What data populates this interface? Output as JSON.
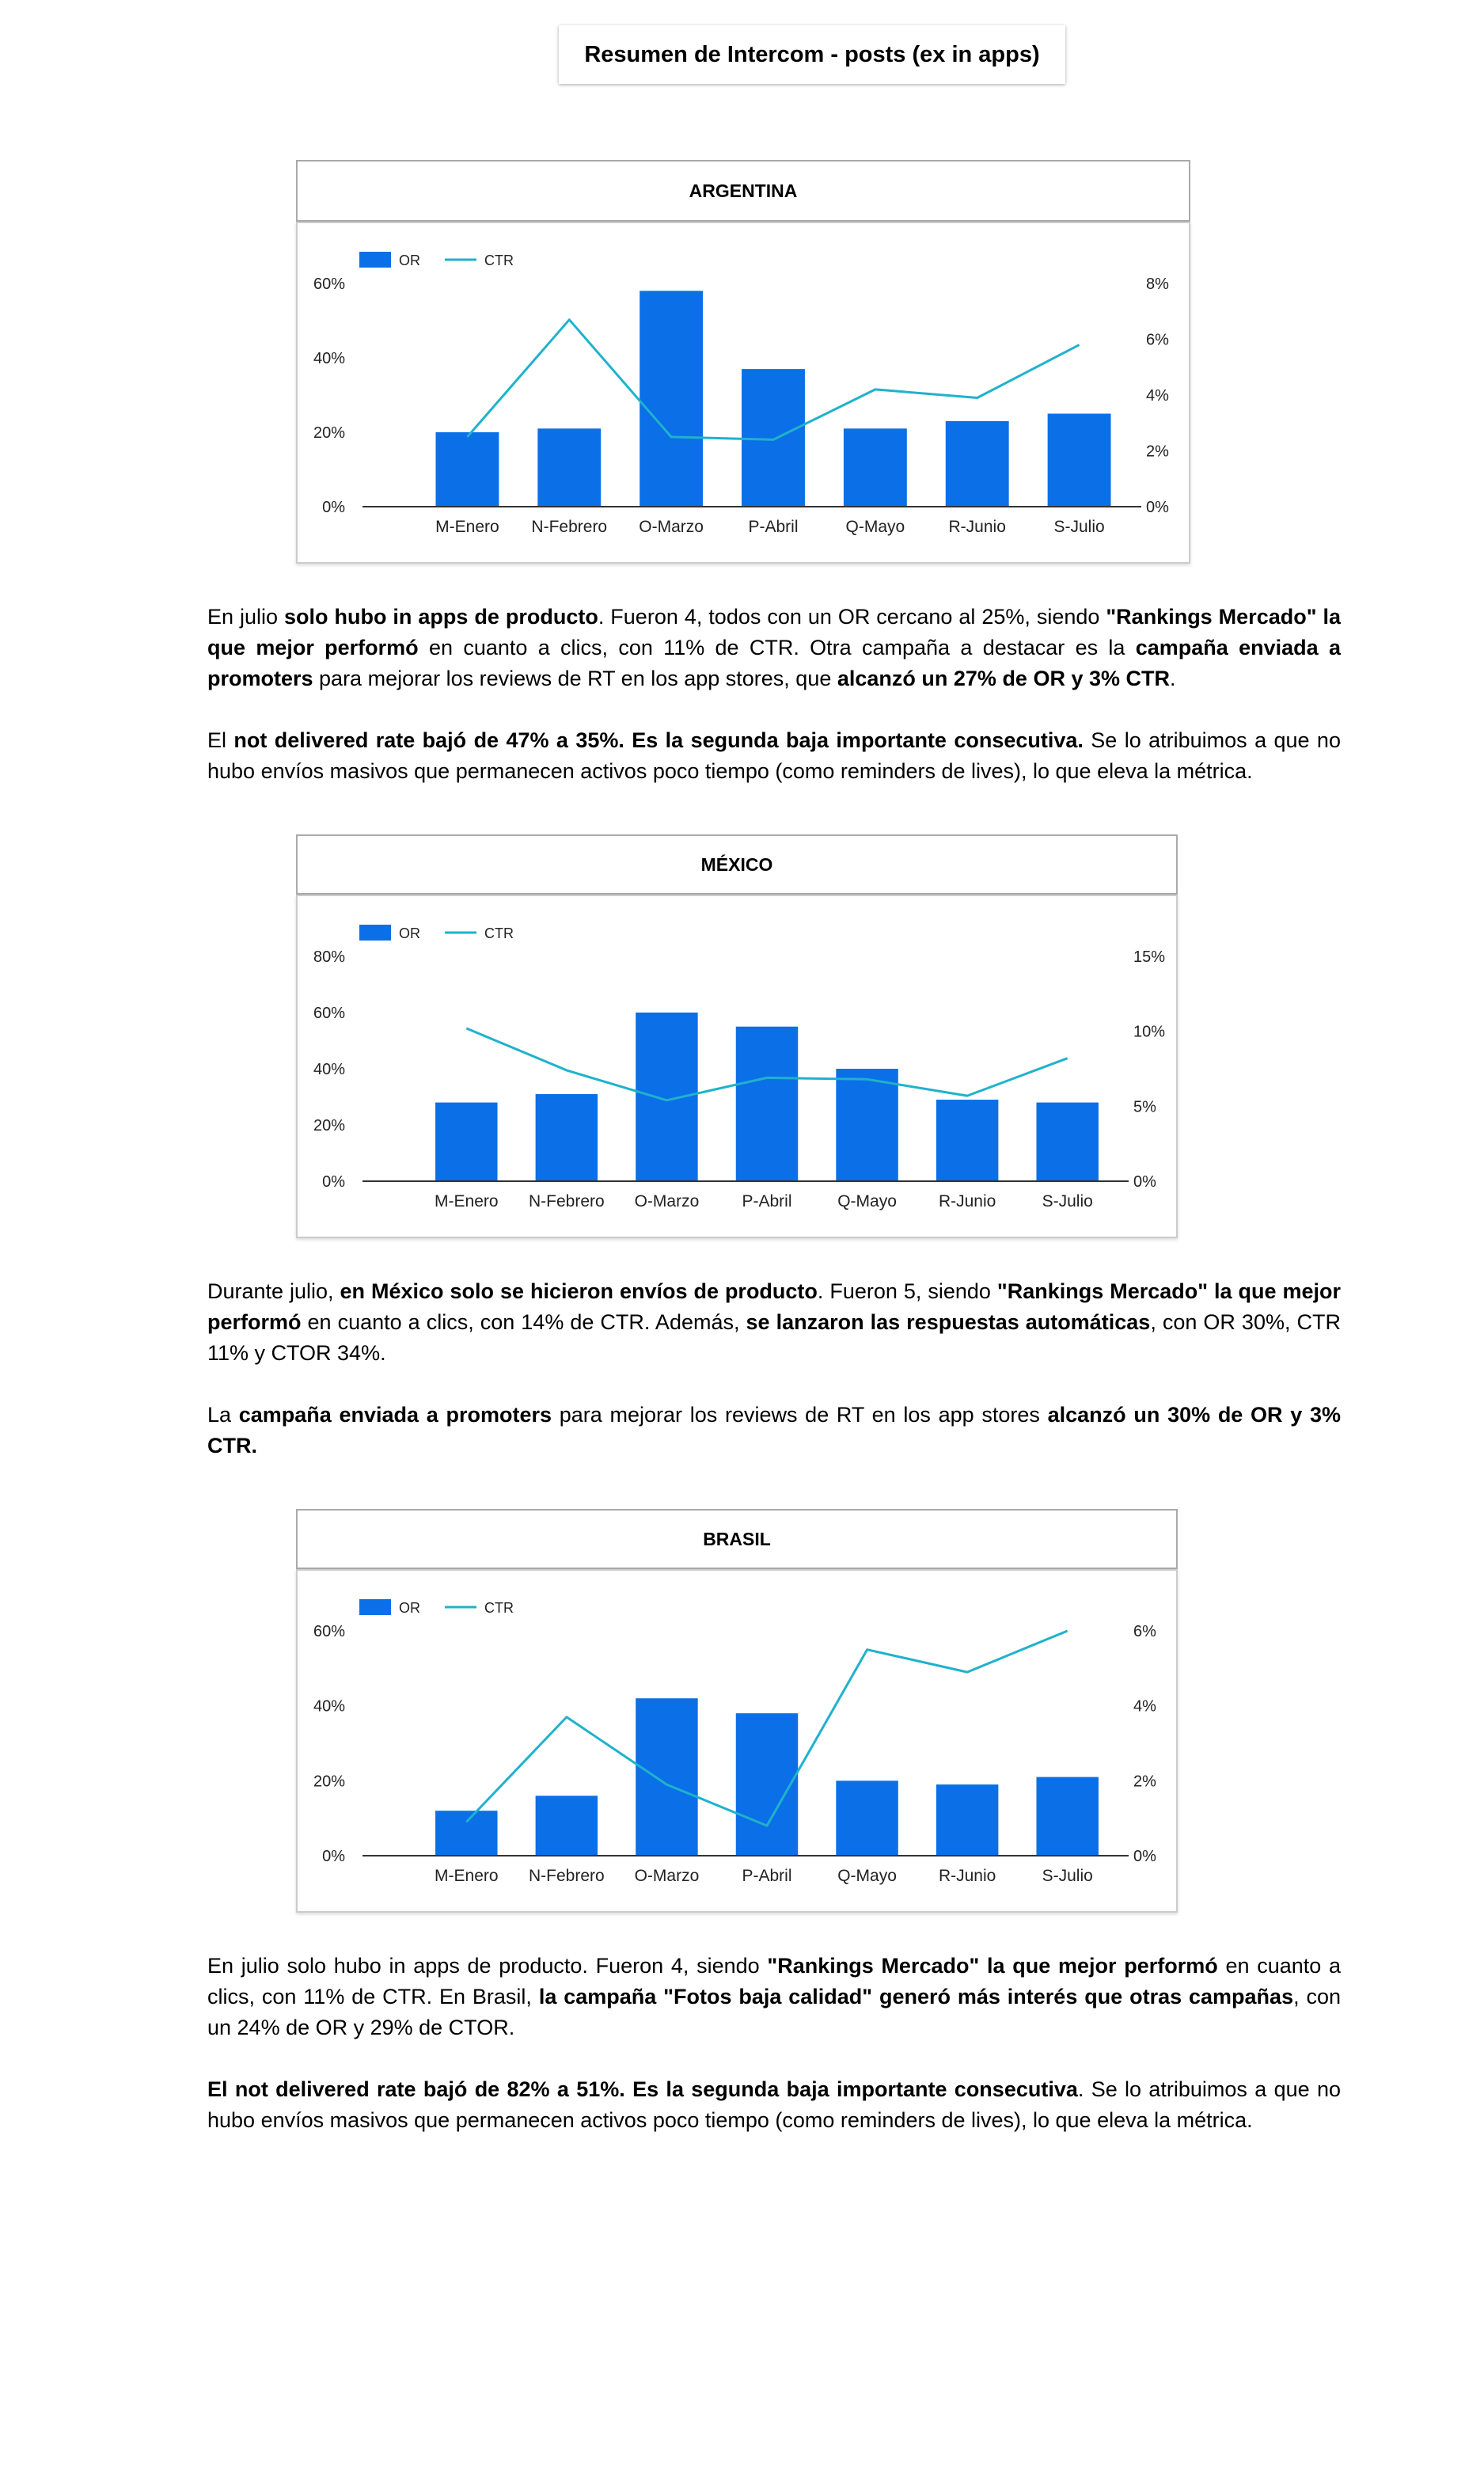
{
  "page": {
    "title": "Resumen de Intercom - posts (ex in apps)"
  },
  "legend": {
    "or": "OR",
    "ctr": "CTR"
  },
  "colors": {
    "bar": "#0b6fe8",
    "line": "#1fb2cc",
    "axis": "#333333"
  },
  "chart_data": [
    {
      "type": "bar",
      "title": "ARGENTINA",
      "categories": [
        "M-Enero",
        "N-Febrero",
        "O-Marzo",
        "P-Abril",
        "Q-Mayo",
        "R-Junio",
        "S-Julio"
      ],
      "series": [
        {
          "name": "OR",
          "type": "bar",
          "axis": "left",
          "values": [
            20,
            21,
            58,
            37,
            21,
            23,
            25
          ]
        },
        {
          "name": "CTR",
          "type": "line",
          "axis": "right",
          "values": [
            2.5,
            6.7,
            2.5,
            2.4,
            4.2,
            3.9,
            5.8
          ]
        }
      ],
      "yleft": {
        "ticks": [
          "0%",
          "20%",
          "40%",
          "60%"
        ],
        "max": 60
      },
      "yright": {
        "ticks": [
          "0%",
          "2%",
          "4%",
          "6%",
          "8%"
        ],
        "max": 8
      }
    },
    {
      "type": "bar",
      "title": "MÉXICO",
      "categories": [
        "M-Enero",
        "N-Febrero",
        "O-Marzo",
        "P-Abril",
        "Q-Mayo",
        "R-Junio",
        "S-Julio"
      ],
      "series": [
        {
          "name": "OR",
          "type": "bar",
          "axis": "left",
          "values": [
            28,
            31,
            60,
            55,
            40,
            29,
            28
          ]
        },
        {
          "name": "CTR",
          "type": "line",
          "axis": "right",
          "values": [
            10.2,
            7.4,
            5.4,
            6.9,
            6.8,
            5.7,
            8.2
          ]
        }
      ],
      "yleft": {
        "ticks": [
          "0%",
          "20%",
          "40%",
          "60%",
          "80%"
        ],
        "max": 80
      },
      "yright": {
        "ticks": [
          "0%",
          "5%",
          "10%",
          "15%"
        ],
        "max": 15
      }
    },
    {
      "type": "bar",
      "title": "BRASIL",
      "categories": [
        "M-Enero",
        "N-Febrero",
        "O-Marzo",
        "P-Abril",
        "Q-Mayo",
        "R-Junio",
        "S-Julio"
      ],
      "series": [
        {
          "name": "OR",
          "type": "bar",
          "axis": "left",
          "values": [
            12,
            16,
            42,
            38,
            20,
            19,
            21
          ]
        },
        {
          "name": "CTR",
          "type": "line",
          "axis": "right",
          "values": [
            0.9,
            3.7,
            1.9,
            0.8,
            5.5,
            4.9,
            6.0
          ]
        }
      ],
      "yleft": {
        "ticks": [
          "0%",
          "20%",
          "40%",
          "60%"
        ],
        "max": 60
      },
      "yright": {
        "ticks": [
          "0%",
          "2%",
          "4%",
          "6%"
        ],
        "max": 6
      }
    }
  ],
  "sections": [
    {
      "paragraphs": [
        [
          {
            "t": "En julio "
          },
          {
            "t": "solo hubo in apps de producto",
            "b": true
          },
          {
            "t": ". Fueron 4, todos con un OR cercano al 25%, siendo "
          },
          {
            "t": "\"Rankings Mercado\" la que mejor performó",
            "b": true
          },
          {
            "t": " en cuanto a clics, con 11% de CTR. Otra campaña a destacar es la "
          },
          {
            "t": "campaña enviada a promoters",
            "b": true
          },
          {
            "t": " para mejorar los reviews de RT en los app stores, que "
          },
          {
            "t": "alcanzó un 27% de OR y 3% CTR",
            "b": true
          },
          {
            "t": "."
          }
        ],
        [
          {
            "t": "El "
          },
          {
            "t": "not delivered rate bajó de 47% a 35%. Es la segunda baja importante consecutiva.",
            "b": true
          },
          {
            "t": " Se lo atribuimos a que no hubo envíos masivos que permanecen activos poco tiempo (como reminders de lives), lo que eleva la métrica."
          }
        ]
      ]
    },
    {
      "paragraphs": [
        [
          {
            "t": "Durante julio, "
          },
          {
            "t": "en México solo se hicieron envíos de producto",
            "b": true
          },
          {
            "t": ". Fueron 5, siendo "
          },
          {
            "t": "\"Rankings Mercado\" la que mejor performó",
            "b": true
          },
          {
            "t": " en cuanto a clics, con 14% de CTR. Además, "
          },
          {
            "t": "se lanzaron las respuestas automáticas",
            "b": true
          },
          {
            "t": ", con OR 30%, CTR 11% y CTOR 34%."
          }
        ],
        [
          {
            "t": "La "
          },
          {
            "t": "campaña enviada a promoters",
            "b": true
          },
          {
            "t": " para mejorar los reviews de RT en los app stores "
          },
          {
            "t": "alcanzó un 30% de OR y 3% CTR.",
            "b": true
          }
        ]
      ]
    },
    {
      "paragraphs": [
        [
          {
            "t": "En julio solo hubo in apps de producto. Fueron 4, siendo "
          },
          {
            "t": "\"Rankings Mercado\" la que mejor performó",
            "b": true
          },
          {
            "t": " en cuanto a clics, con 11% de CTR. En Brasil, "
          },
          {
            "t": "la campaña \"Fotos baja calidad\" generó más interés que otras campañas",
            "b": true
          },
          {
            "t": ", con un 24% de OR y 29% de CTOR."
          }
        ],
        [
          {
            "t": "El not delivered rate bajó de 82% a 51%. Es la segunda baja importante consecutiva",
            "b": true
          },
          {
            "t": ". Se lo atribuimos a que no hubo envíos masivos que permanecen activos poco tiempo (como reminders de lives), lo que eleva la métrica."
          }
        ]
      ]
    }
  ]
}
